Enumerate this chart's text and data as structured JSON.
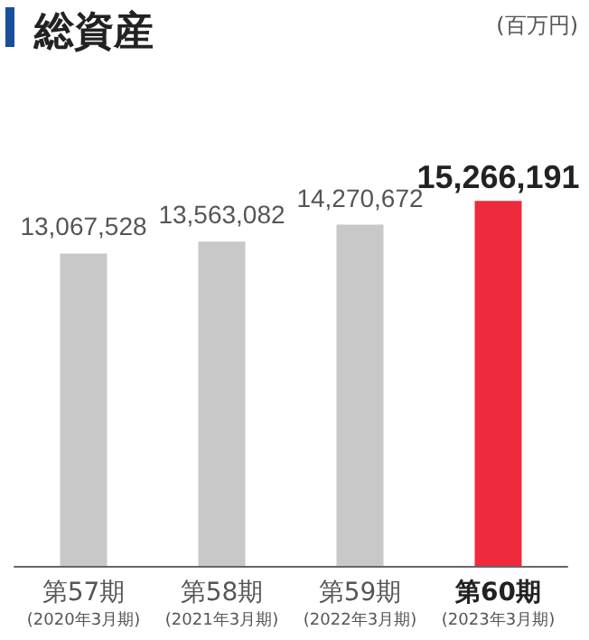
{
  "chart_data": {
    "type": "bar",
    "title": "総資産",
    "annotations": [
      "(百万円)"
    ],
    "categories": [
      "第57期\n(2020年3月期)",
      "第58期\n(2021年3月期)",
      "第59期\n(2022年3月期)",
      "第60期\n(2023年3月期)"
    ],
    "values": [
      13067528,
      13563082,
      14270672,
      15266191
    ],
    "value_labels": [
      "13,067,528",
      "13,563,082",
      "14,270,672",
      "15,266,191"
    ],
    "colors": [
      "#c8c8c8",
      "#c8c8c8",
      "#c8c8c8",
      "#ee2a3c"
    ]
  }
}
